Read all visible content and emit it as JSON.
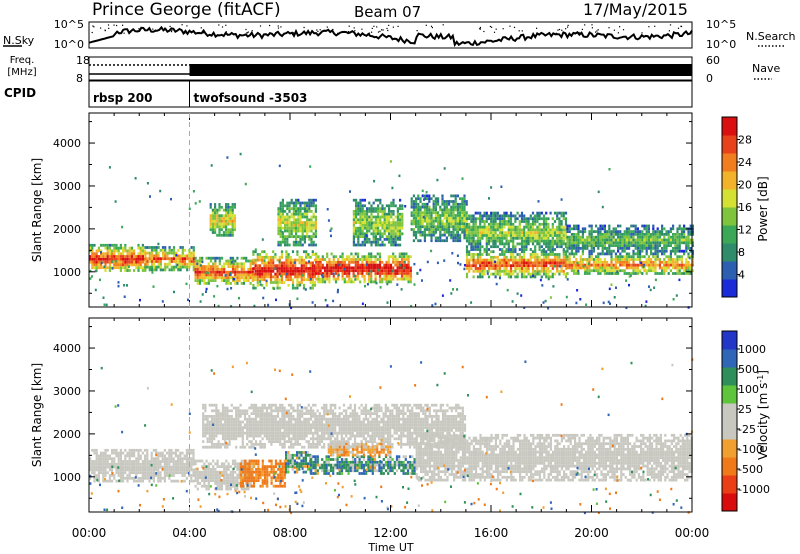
{
  "header": {
    "station": "Prince George (fitACF)",
    "beam": "Beam 07",
    "date": "17/May/2015"
  },
  "nsky_panel": {
    "left_label": "N.Sky",
    "right_label": "N.Search",
    "left_ticks": [
      "10^5",
      "10^0"
    ],
    "right_ticks": [
      "10^5",
      "10^0"
    ]
  },
  "freq_panel": {
    "left_label_line1": "Freq.",
    "left_label_line2": "[MHz]",
    "right_label": "Nave",
    "left_ticks": [
      "18",
      "8"
    ],
    "right_ticks": [
      "60",
      "0"
    ]
  },
  "cpid_panel": {
    "label": "CPID",
    "programs": [
      {
        "name": "rbsp 200",
        "start_hour": 0
      },
      {
        "name": "twofsound -3503",
        "start_hour": 4
      }
    ]
  },
  "chart_data": [
    {
      "type": "heatmap",
      "panel": "power",
      "ylabel": "Slant Range [km]",
      "xlabel": "Time UT",
      "x_ticks": [
        "00:00",
        "04:00",
        "08:00",
        "12:00",
        "16:00",
        "20:00",
        "00:00"
      ],
      "y_ticks": [
        1000,
        2000,
        3000,
        4000
      ],
      "xlim_hours": [
        0,
        24
      ],
      "ylim_km": [
        180,
        4700
      ],
      "colorbar": {
        "label": "Power [dB]",
        "ticks": [
          4,
          8,
          12,
          16,
          20,
          24,
          28
        ],
        "colors": [
          "#1c2bd8",
          "#2d5fb0",
          "#2f8c6a",
          "#3aa856",
          "#7ec43c",
          "#d4e032",
          "#f2b32a",
          "#f07d1e",
          "#e8421a",
          "#d90f10"
        ]
      },
      "bands": [
        {
          "t0": 0.0,
          "t1": 2.2,
          "r0": 1000,
          "r1": 1650,
          "level": 0.85
        },
        {
          "t0": 2.2,
          "t1": 4.2,
          "r0": 1050,
          "r1": 1600,
          "level": 0.75
        },
        {
          "t0": 4.2,
          "t1": 6.5,
          "r0": 700,
          "r1": 1350,
          "level": 0.8
        },
        {
          "t0": 4.8,
          "t1": 5.8,
          "r0": 1850,
          "r1": 2600,
          "level": 0.55
        },
        {
          "t0": 6.5,
          "t1": 9.0,
          "r0": 650,
          "r1": 1500,
          "level": 0.9
        },
        {
          "t0": 7.5,
          "t1": 9.0,
          "r0": 1600,
          "r1": 2700,
          "level": 0.5
        },
        {
          "t0": 9.0,
          "t1": 12.8,
          "r0": 750,
          "r1": 1450,
          "level": 0.95
        },
        {
          "t0": 10.5,
          "t1": 12.5,
          "r0": 1600,
          "r1": 2700,
          "level": 0.45
        },
        {
          "t0": 12.8,
          "t1": 15.0,
          "r0": 1700,
          "r1": 2800,
          "level": 0.4
        },
        {
          "t0": 15.0,
          "t1": 19.0,
          "r0": 900,
          "r1": 1500,
          "level": 0.8
        },
        {
          "t0": 15.0,
          "t1": 19.0,
          "r0": 1500,
          "r1": 2400,
          "level": 0.45
        },
        {
          "t0": 19.0,
          "t1": 24.0,
          "r0": 950,
          "r1": 1450,
          "level": 0.7
        },
        {
          "t0": 19.0,
          "t1": 24.0,
          "r0": 1450,
          "r1": 2100,
          "level": 0.35
        }
      ]
    },
    {
      "type": "heatmap",
      "panel": "velocity",
      "ylabel": "Slant Range [km]",
      "xlabel": "Time UT",
      "x_ticks": [
        "00:00",
        "04:00",
        "08:00",
        "12:00",
        "16:00",
        "20:00",
        "00:00"
      ],
      "y_ticks": [
        1000,
        2000,
        3000,
        4000
      ],
      "xlim_hours": [
        0,
        24
      ],
      "ylim_km": [
        180,
        4700
      ],
      "colorbar": {
        "label": "Velocity [m s^-1]",
        "ticks": [
          1000,
          500,
          100,
          25,
          -25,
          -100,
          -500,
          -1000
        ],
        "colors": [
          "#2237c8",
          "#2f66b8",
          "#2f8f58",
          "#5ec43c",
          "#c8c8c0",
          "#c8c8c0",
          "#f0a030",
          "#f07a1a",
          "#ea3e16",
          "#d80c0c"
        ]
      },
      "bands": [
        {
          "t0": 0.0,
          "t1": 4.2,
          "r0": 900,
          "r1": 1650,
          "vel": 0
        },
        {
          "t0": 4.2,
          "t1": 6.5,
          "r0": 700,
          "r1": 1400,
          "vel": 0
        },
        {
          "t0": 6.0,
          "t1": 7.8,
          "r0": 800,
          "r1": 1400,
          "vel": -450
        },
        {
          "t0": 7.8,
          "t1": 8.8,
          "r0": 1100,
          "r1": 1600,
          "vel": 120
        },
        {
          "t0": 8.8,
          "t1": 13.0,
          "r0": 1100,
          "r1": 1500,
          "vel": 180
        },
        {
          "t0": 9.5,
          "t1": 12.0,
          "r0": 1500,
          "r1": 1800,
          "vel": -200
        },
        {
          "t0": 4.5,
          "t1": 15.0,
          "r0": 1700,
          "r1": 2700,
          "vel": 0
        },
        {
          "t0": 13.0,
          "t1": 24.0,
          "r0": 900,
          "r1": 2000,
          "vel": 0
        }
      ]
    }
  ],
  "axis_labels": {
    "x": "Time UT",
    "power_colorbar": "Power [dB]",
    "velocity_colorbar_main": "Velocity [m s",
    "velocity_colorbar_sup": "-1",
    "velocity_colorbar_end": "]"
  }
}
